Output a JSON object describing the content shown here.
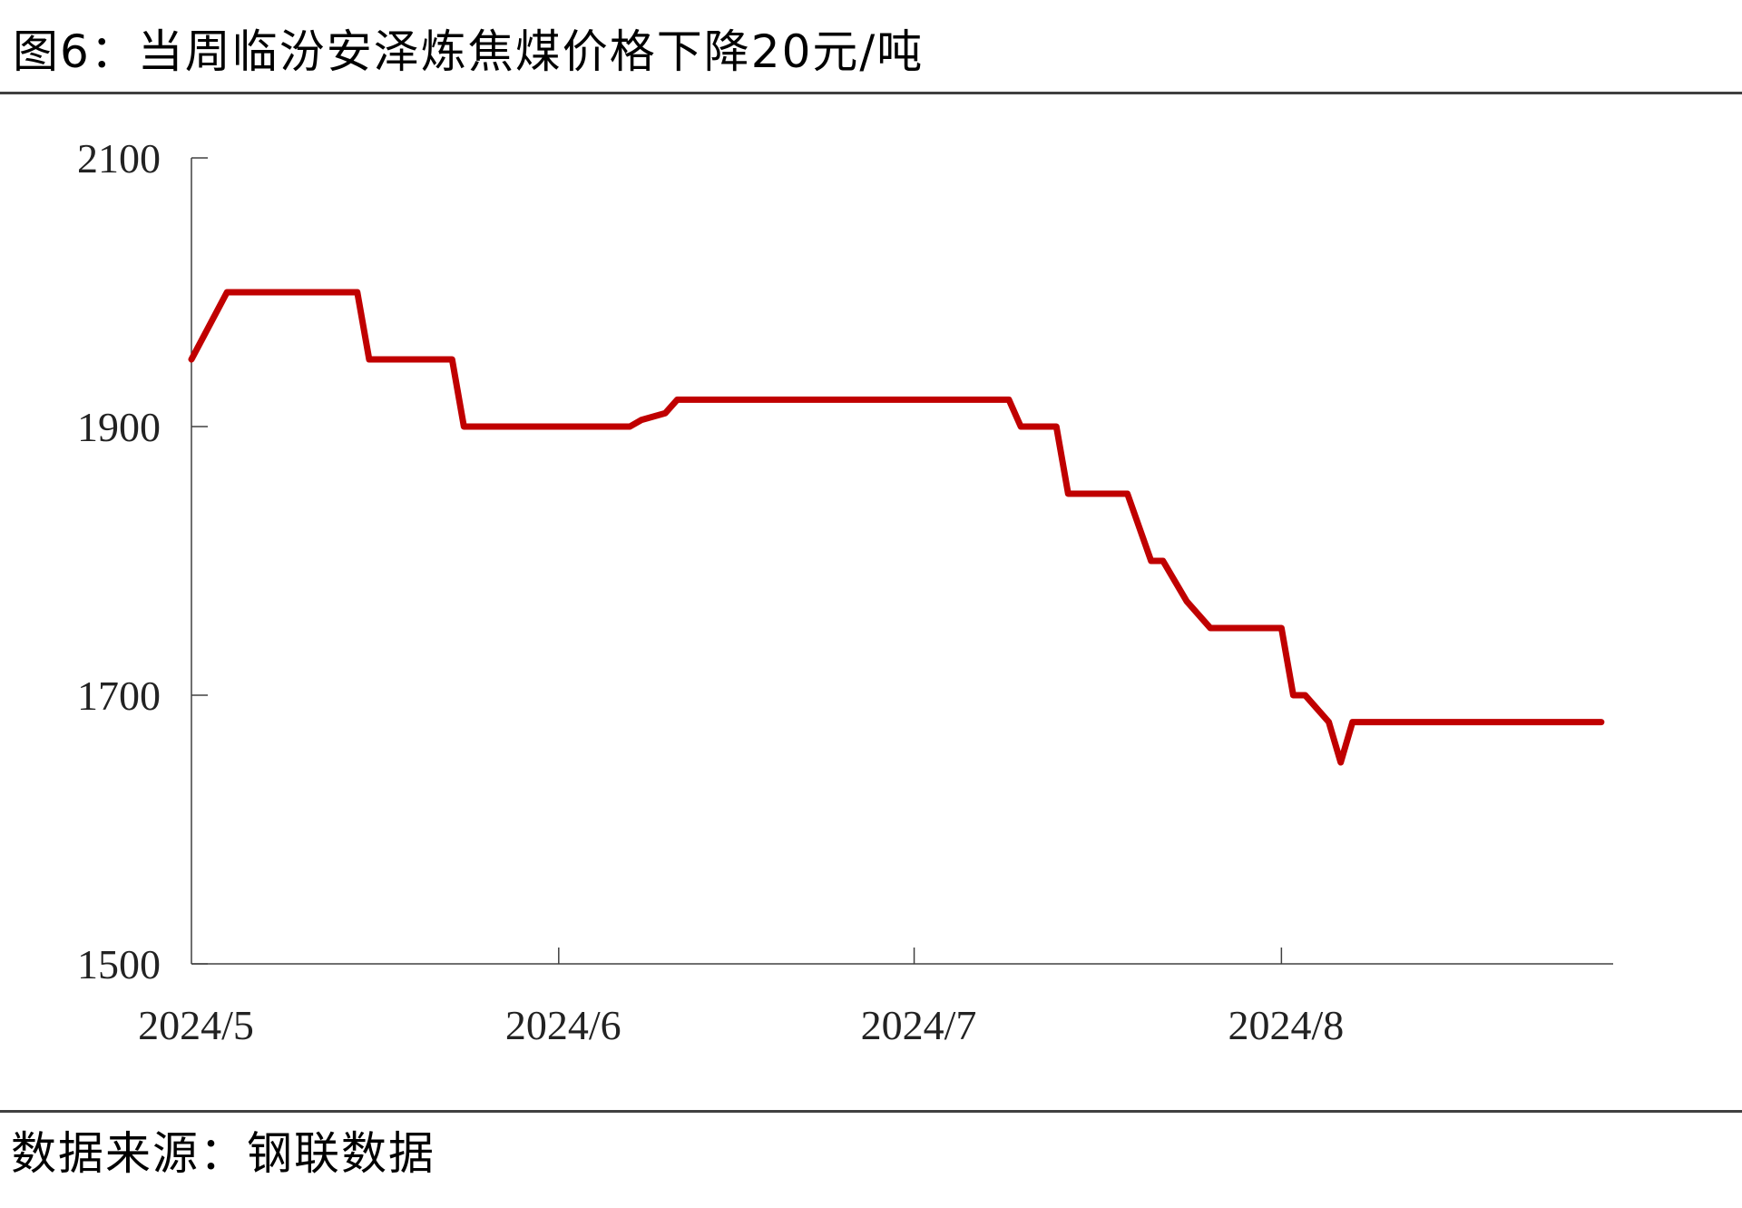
{
  "title": "图6：当周临汾安泽炼焦煤价格下降20元/吨",
  "source": "数据来源：钢联数据",
  "colors": {
    "line": "#c00000",
    "axis": "#404040",
    "rule": "#404040"
  },
  "chart_data": {
    "type": "line",
    "title": "",
    "xlabel": "",
    "ylabel": "",
    "ylim": [
      1500,
      2100
    ],
    "y_ticks": [
      "2100",
      "1900",
      "1700",
      "1500"
    ],
    "x_ticks": [
      "2024/5",
      "2024/6",
      "2024/7",
      "2024/8"
    ],
    "x_range": [
      "2024-05-01",
      "2024-08-29"
    ],
    "grid": false,
    "legend": "none",
    "series": [
      {
        "x": [
          "2024-05-01",
          "2024-05-04",
          "2024-05-05",
          "2024-05-15",
          "2024-05-16",
          "2024-05-17",
          "2024-05-23",
          "2024-05-24",
          "2024-05-31",
          "2024-06-07",
          "2024-06-08",
          "2024-06-10",
          "2024-06-11",
          "2024-07-09",
          "2024-07-10",
          "2024-07-13",
          "2024-07-14",
          "2024-07-16",
          "2024-07-19",
          "2024-07-21",
          "2024-07-22",
          "2024-07-24",
          "2024-07-26",
          "2024-07-28",
          "2024-08-01",
          "2024-08-02",
          "2024-08-03",
          "2024-08-05",
          "2024-08-06",
          "2024-08-07",
          "2024-08-28"
        ],
        "values": [
          1950,
          2000,
          2000,
          2000,
          1950,
          1950,
          1950,
          1900,
          1900,
          1900,
          1905,
          1910,
          1920,
          1920,
          1900,
          1900,
          1850,
          1850,
          1850,
          1800,
          1800,
          1770,
          1750,
          1750,
          1750,
          1700,
          1700,
          1680,
          1650,
          1680,
          1680
        ]
      }
    ]
  }
}
